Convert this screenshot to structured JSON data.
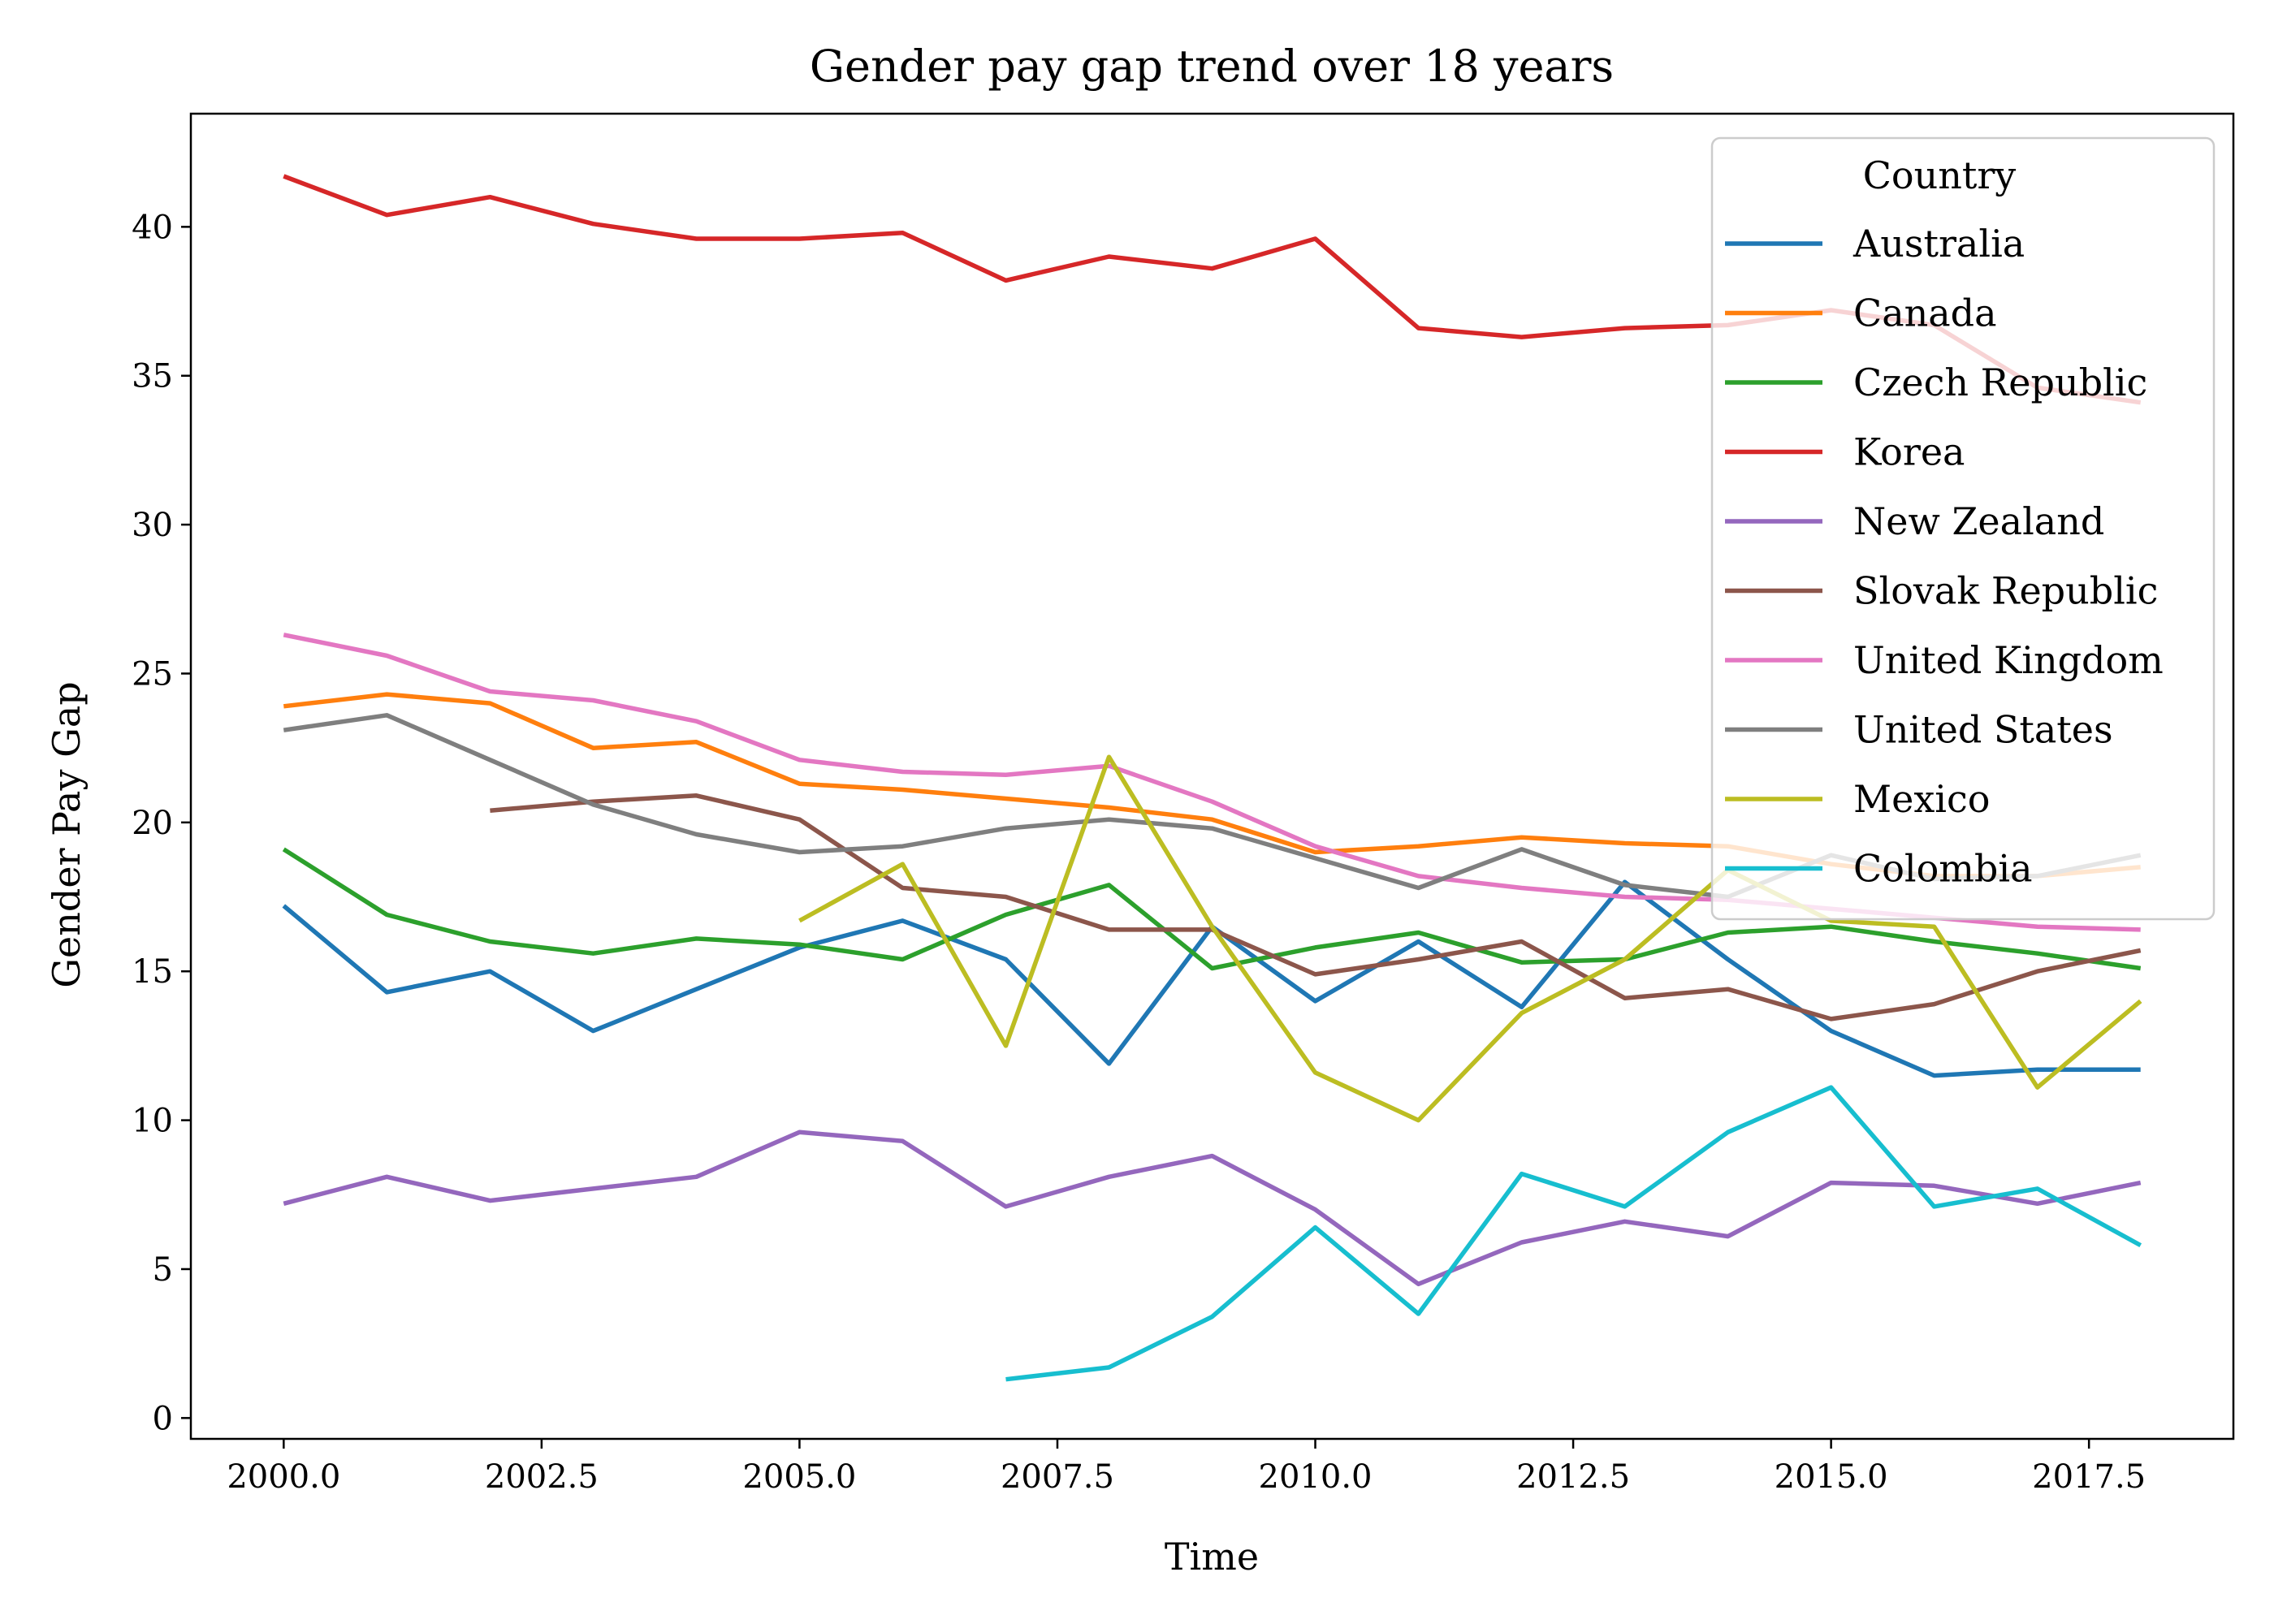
{
  "chart_data": {
    "type": "line",
    "title": "Gender pay gap trend over 18 years",
    "xlabel": "Time",
    "ylabel": "Gender Pay Gap",
    "xlim": [
      1999.1,
      2018.9
    ],
    "ylim": [
      -0.7,
      43.8
    ],
    "xticks": [
      2000.0,
      2002.5,
      2005.0,
      2007.5,
      2010.0,
      2012.5,
      2015.0,
      2017.5
    ],
    "xtick_labels": [
      "2000.0",
      "2002.5",
      "2005.0",
      "2007.5",
      "2010.0",
      "2012.5",
      "2015.0",
      "2017.5"
    ],
    "yticks": [
      0,
      5,
      10,
      15,
      20,
      25,
      30,
      35,
      40
    ],
    "ytick_labels": [
      "0",
      "5",
      "10",
      "15",
      "20",
      "25",
      "30",
      "35",
      "40"
    ],
    "grid": false,
    "legend": {
      "title": "Country",
      "placement": "top-right"
    },
    "x": [
      2000,
      2001,
      2002,
      2003,
      2004,
      2005,
      2006,
      2007,
      2008,
      2009,
      2010,
      2011,
      2012,
      2013,
      2014,
      2015,
      2016,
      2017,
      2018
    ],
    "series": [
      {
        "name": "Australia",
        "color": "#1f77b4",
        "values": [
          17.2,
          14.3,
          15.0,
          13.0,
          14.4,
          15.8,
          16.7,
          15.4,
          11.9,
          16.5,
          14.0,
          16.0,
          13.8,
          18.0,
          15.4,
          13.0,
          11.5,
          11.7,
          11.7
        ]
      },
      {
        "name": "Canada",
        "color": "#ff7f0e",
        "values": [
          23.9,
          24.3,
          24.0,
          22.5,
          22.7,
          21.3,
          21.1,
          20.8,
          20.5,
          20.1,
          19.0,
          19.2,
          19.5,
          19.3,
          19.2,
          18.6,
          18.2,
          18.2,
          18.5
        ]
      },
      {
        "name": "Czech Republic",
        "color": "#2ca02c",
        "values": [
          19.1,
          16.9,
          16.0,
          15.6,
          16.1,
          15.9,
          15.4,
          16.9,
          17.9,
          15.1,
          15.8,
          16.3,
          15.3,
          15.4,
          16.3,
          16.5,
          16.0,
          15.6,
          15.1
        ]
      },
      {
        "name": "Korea",
        "color": "#d62728",
        "values": [
          41.7,
          40.4,
          41.0,
          40.1,
          39.6,
          39.6,
          39.8,
          38.2,
          39.0,
          38.6,
          39.6,
          36.6,
          36.3,
          36.6,
          36.7,
          37.2,
          36.7,
          34.6,
          34.1
        ]
      },
      {
        "name": "New Zealand",
        "color": "#9467bd",
        "values": [
          7.2,
          8.1,
          7.3,
          7.7,
          8.1,
          9.6,
          9.3,
          7.1,
          8.1,
          8.8,
          7.0,
          4.5,
          5.9,
          6.6,
          6.1,
          7.9,
          7.8,
          7.2,
          7.9
        ]
      },
      {
        "name": "Slovak Republic",
        "color": "#8c564b",
        "values": [
          null,
          null,
          20.4,
          20.7,
          20.9,
          20.1,
          17.8,
          17.5,
          16.4,
          16.4,
          14.9,
          15.4,
          16.0,
          14.1,
          14.4,
          13.4,
          13.9,
          15.0,
          15.7
        ]
      },
      {
        "name": "United Kingdom",
        "color": "#e377c2",
        "values": [
          26.3,
          25.6,
          24.4,
          24.1,
          23.4,
          22.1,
          21.7,
          21.6,
          21.9,
          20.7,
          19.2,
          18.2,
          17.8,
          17.5,
          17.4,
          17.1,
          16.8,
          16.5,
          16.4
        ]
      },
      {
        "name": "United States",
        "color": "#7f7f7f",
        "values": [
          23.1,
          23.6,
          22.1,
          20.6,
          19.6,
          19.0,
          19.2,
          19.8,
          20.1,
          19.8,
          18.8,
          17.8,
          19.1,
          17.9,
          17.5,
          18.9,
          18.1,
          18.2,
          18.9
        ]
      },
      {
        "name": "Mexico",
        "color": "#bcbd22",
        "values": [
          null,
          null,
          null,
          null,
          null,
          16.7,
          18.6,
          12.5,
          22.2,
          16.5,
          11.6,
          10.0,
          13.6,
          15.4,
          18.4,
          16.7,
          16.5,
          11.1,
          14.0
        ]
      },
      {
        "name": "Colombia",
        "color": "#17becf",
        "values": [
          null,
          null,
          null,
          null,
          null,
          null,
          null,
          1.3,
          1.7,
          3.4,
          6.4,
          3.5,
          8.2,
          7.1,
          9.6,
          11.1,
          7.1,
          7.7,
          5.8
        ]
      }
    ]
  }
}
